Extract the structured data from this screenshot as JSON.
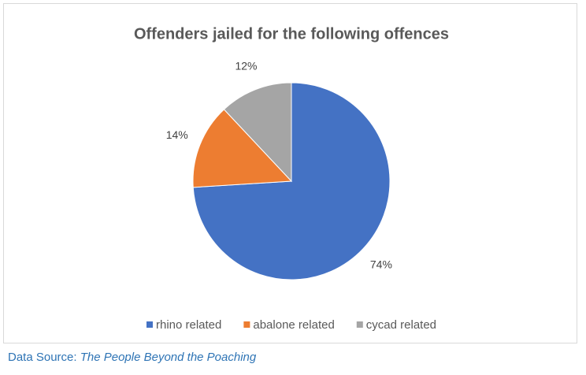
{
  "chart_data": {
    "type": "pie",
    "title": "Offenders jailed for the following offences",
    "categories": [
      "rhino related",
      "abalone related",
      "cycad related"
    ],
    "values": [
      74,
      14,
      12
    ],
    "value_labels": [
      "74%",
      "14%",
      "12%"
    ],
    "colors": [
      "#4472c4",
      "#ed7d31",
      "#a5a5a5"
    ],
    "legend": "bottom"
  },
  "source": {
    "label": "Data Source:",
    "title": "The People Beyond the Poaching"
  }
}
